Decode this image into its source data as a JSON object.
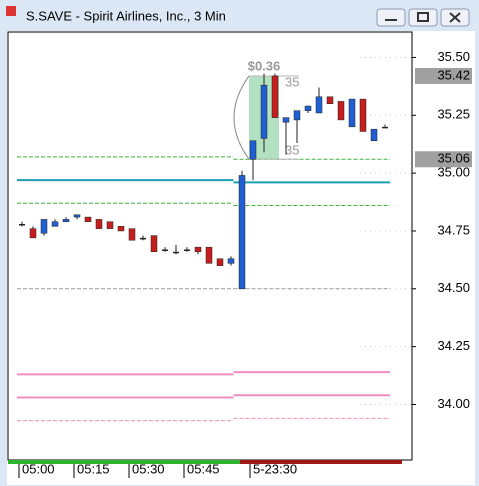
{
  "window": {
    "title": "S.SAVE - Spirit Airlines, Inc., 3 Min"
  },
  "chart_data": {
    "type": "candlestick",
    "categories": [
      "05:00",
      null,
      null,
      null,
      null,
      "05:15",
      null,
      null,
      null,
      null,
      "05:30",
      null,
      null,
      null,
      null,
      "05:45",
      null,
      null,
      null,
      null,
      null,
      "5-23:30",
      null,
      null,
      null,
      null,
      null,
      null,
      null,
      null,
      null,
      null,
      null,
      null
    ],
    "open": [
      34.78,
      34.76,
      34.74,
      34.77,
      34.79,
      34.81,
      34.81,
      34.8,
      34.79,
      34.77,
      34.76,
      34.72,
      34.73,
      34.67,
      34.66,
      34.67,
      34.68,
      34.68,
      34.63,
      34.61,
      34.5,
      35.06,
      35.15,
      35.42,
      35.22,
      35.23,
      35.27,
      35.26,
      35.33,
      35.31,
      35.2,
      35.32,
      35.14,
      35.2
    ],
    "high": [
      34.79,
      34.77,
      34.8,
      34.8,
      34.81,
      34.82,
      34.81,
      34.8,
      34.79,
      34.77,
      34.76,
      34.73,
      34.73,
      34.68,
      34.69,
      34.68,
      34.68,
      34.68,
      34.63,
      34.64,
      35.01,
      35.14,
      35.43,
      35.43,
      35.24,
      35.27,
      35.29,
      35.37,
      35.33,
      35.31,
      35.32,
      35.32,
      35.19,
      35.21
    ],
    "low": [
      34.77,
      34.72,
      34.73,
      34.77,
      34.79,
      34.8,
      34.79,
      34.76,
      34.76,
      34.75,
      34.71,
      34.71,
      34.66,
      34.66,
      34.65,
      34.66,
      34.65,
      34.61,
      34.6,
      34.6,
      34.5,
      34.97,
      35.09,
      35.24,
      35.08,
      35.13,
      35.26,
      35.26,
      35.3,
      35.23,
      35.2,
      35.18,
      35.14,
      35.2
    ],
    "close": [
      34.78,
      34.72,
      34.8,
      34.79,
      34.8,
      34.82,
      34.79,
      34.76,
      34.76,
      34.75,
      34.71,
      34.72,
      34.66,
      34.67,
      34.66,
      34.67,
      34.66,
      34.61,
      34.6,
      34.63,
      34.99,
      35.14,
      35.38,
      35.24,
      35.24,
      35.27,
      35.29,
      35.33,
      35.3,
      35.23,
      35.32,
      35.18,
      35.19,
      35.2
    ],
    "up_color": "#1f5fd1",
    "down_color": "#c41e1e",
    "ylim": [
      33.76,
      35.61
    ],
    "yticks": [
      {
        "value": 34.0,
        "label": "34.00"
      },
      34.25,
      {
        "value": 34.5,
        "label": "34.50"
      },
      34.75,
      {
        "value": 35.0,
        "label": "35.00"
      },
      35.25,
      {
        "value": 35.5,
        "label": "35.50"
      }
    ],
    "price_markers": [
      35.42,
      35.06
    ],
    "levels": [
      {
        "color": "#3cb43c",
        "dashed": true,
        "values": [
          35.07,
          35.06
        ]
      },
      {
        "color": "#1aa0b0",
        "dashed": false,
        "values": [
          34.97,
          34.96
        ]
      },
      {
        "color": "#3cb43c",
        "dashed": true,
        "values": [
          34.87,
          34.86
        ]
      },
      {
        "color": "#999999",
        "dashed": true,
        "values": [
          34.5,
          34.5
        ]
      },
      {
        "color": "#f08cc0",
        "dashed": false,
        "values": [
          34.13,
          34.14
        ]
      },
      {
        "color": "#f08cc0",
        "dashed": false,
        "values": [
          34.03,
          34.04
        ]
      },
      {
        "color": "#f08cc0",
        "dashed": true,
        "values": [
          33.93,
          33.94
        ]
      }
    ],
    "measure": {
      "label": "$0.36",
      "from": 35.06,
      "to": 35.42,
      "from_label": "35",
      "to_label": "35"
    }
  }
}
